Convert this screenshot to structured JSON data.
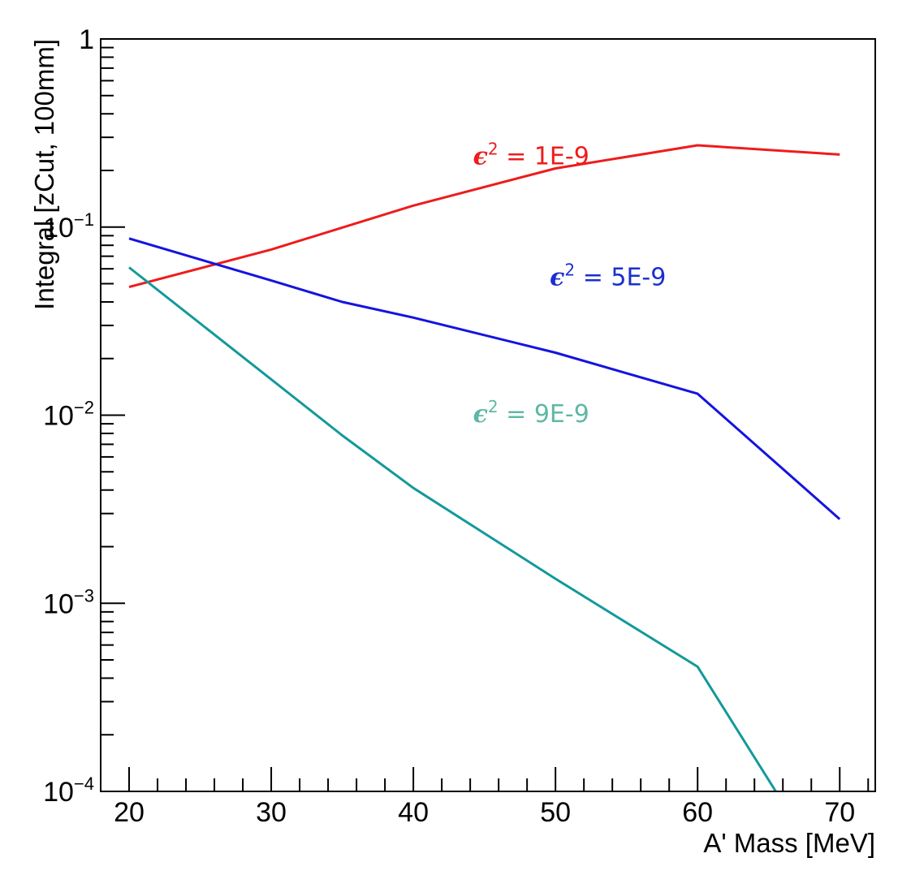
{
  "chart_data": {
    "type": "line",
    "xlabel": "A' Mass [MeV]",
    "ylabel": "Integral [zCut, 100mm]",
    "xlim": [
      18,
      72.5
    ],
    "ylim": [
      0.0001,
      1
    ],
    "yscale": "log",
    "grid": false,
    "x_ticks": [
      20,
      30,
      40,
      50,
      60,
      70
    ],
    "x_tick_labels": [
      "20",
      "30",
      "40",
      "50",
      "60",
      "70"
    ],
    "y_ticks": [
      0.0001,
      0.001,
      0.01,
      0.1,
      1
    ],
    "y_tick_labels": [
      {
        "base": "10",
        "exp": "−4"
      },
      {
        "base": "10",
        "exp": "−3"
      },
      {
        "base": "10",
        "exp": "−2"
      },
      {
        "base": "10",
        "exp": "−1"
      },
      {
        "base": "1",
        "exp": ""
      }
    ],
    "series": [
      {
        "name": "= 1E-9",
        "color": "#ee1c1c",
        "points": [
          [
            20,
            0.048
          ],
          [
            30,
            0.076
          ],
          [
            40,
            0.13
          ],
          [
            50,
            0.205
          ],
          [
            60,
            0.272
          ],
          [
            70,
            0.243
          ]
        ]
      },
      {
        "name": "= 5E-9",
        "color": "#1414e0",
        "points": [
          [
            20,
            0.087
          ],
          [
            30,
            0.052
          ],
          [
            35,
            0.04
          ],
          [
            40,
            0.033
          ],
          [
            50,
            0.0215
          ],
          [
            60,
            0.013
          ],
          [
            70,
            0.0028
          ]
        ]
      },
      {
        "name": "= 9E-9",
        "color": "#13999a",
        "points": [
          [
            20,
            0.061
          ],
          [
            30,
            0.0155
          ],
          [
            35,
            0.0078
          ],
          [
            40,
            0.0041
          ],
          [
            50,
            0.00135
          ],
          [
            60,
            0.00046
          ],
          [
            65.5,
            0.0001
          ]
        ]
      }
    ],
    "annotations": [
      {
        "symbol": "ϵ",
        "sup": "2",
        "text": " = 1E-9",
        "color": "#ee1c1c",
        "x": 44.2,
        "y": 0.215
      },
      {
        "symbol": "ϵ",
        "sup": "2",
        "text": " = 5E-9",
        "color": "#1a2fd0",
        "x": 49.6,
        "y": 0.049
      },
      {
        "symbol": "ϵ",
        "sup": "2",
        "text": " = 9E-9",
        "color": "#5fb8a4",
        "x": 44.2,
        "y": 0.0092
      }
    ]
  }
}
